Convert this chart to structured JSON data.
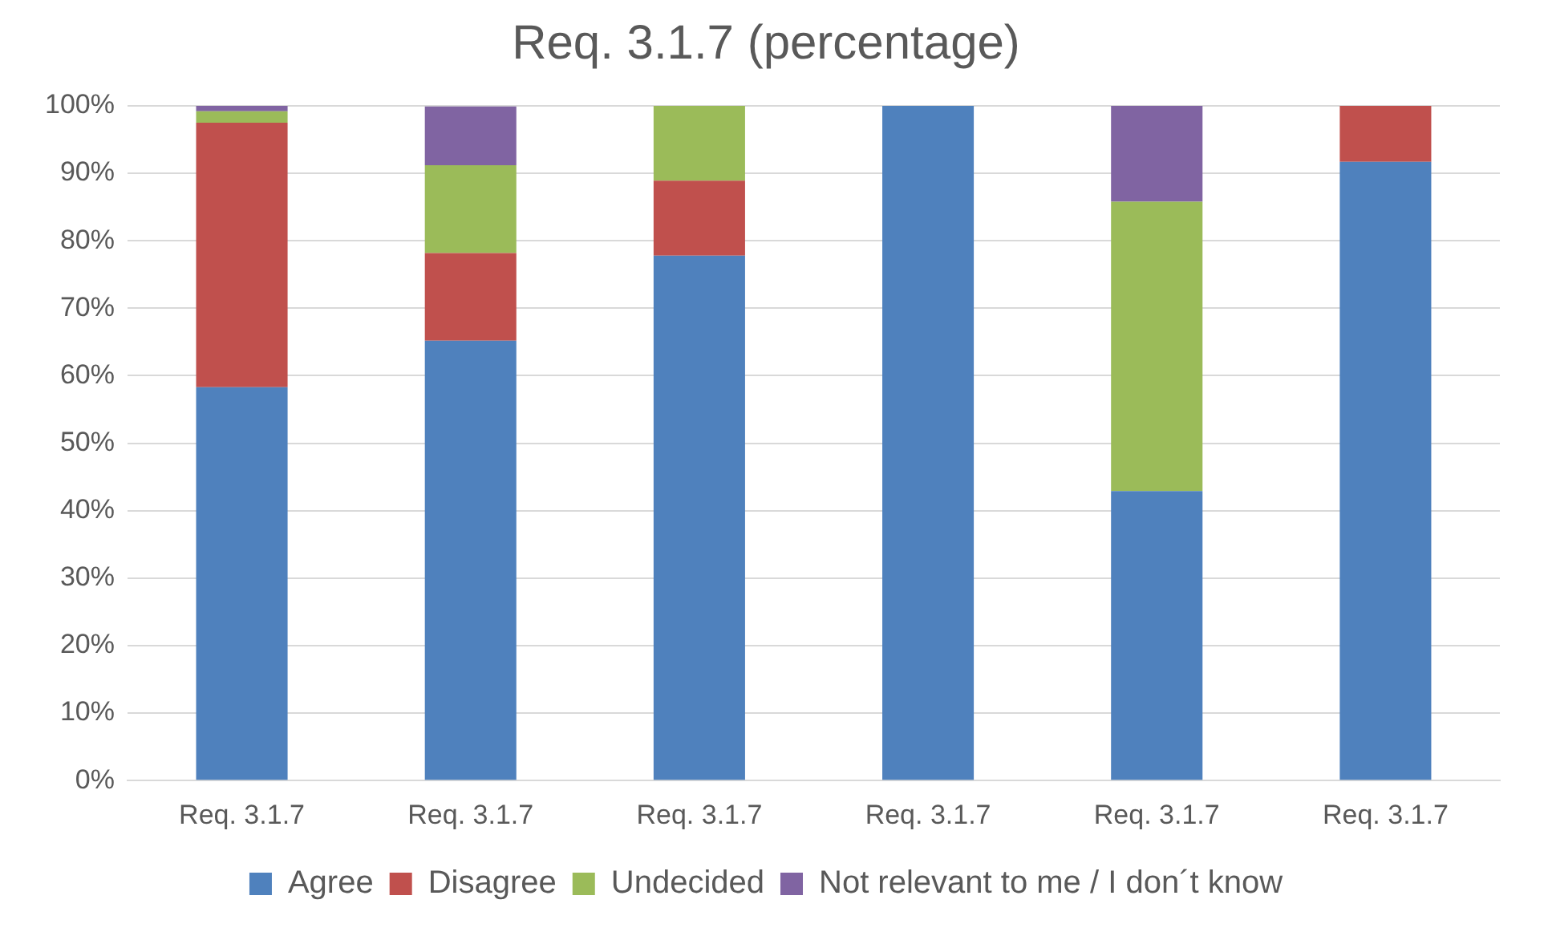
{
  "chart_data": {
    "type": "bar",
    "title": "Req. 3.1.7 (percentage)",
    "categories": [
      "Req. 3.1.7",
      "Req. 3.1.7",
      "Req. 3.1.7",
      "Req. 3.1.7",
      "Req. 3.1.7",
      "Req. 3.1.7"
    ],
    "stacked": true,
    "series": [
      {
        "name": "Agree",
        "color": "#4f81bd",
        "values": [
          58.3,
          65.2,
          77.8,
          100,
          42.9,
          91.7
        ]
      },
      {
        "name": "Disagree",
        "color": "#c0504d",
        "values": [
          39.2,
          13.0,
          11.1,
          0,
          0,
          8.3
        ]
      },
      {
        "name": "Undecided",
        "color": "#9bbb59",
        "values": [
          1.7,
          13.0,
          11.1,
          0,
          42.9,
          0
        ]
      },
      {
        "name": "Not relevant to me / I don´t know",
        "color": "#8064a2",
        "values": [
          0.8,
          8.7,
          0,
          0,
          14.3,
          0
        ]
      }
    ],
    "ylim": [
      0,
      100
    ],
    "yticks": [
      {
        "value": 0,
        "label": "0%"
      },
      {
        "value": 10,
        "label": "10%"
      },
      {
        "value": 20,
        "label": "20%"
      },
      {
        "value": 30,
        "label": "30%"
      },
      {
        "value": 40,
        "label": "40%"
      },
      {
        "value": 50,
        "label": "50%"
      },
      {
        "value": 60,
        "label": "60%"
      },
      {
        "value": 70,
        "label": "70%"
      },
      {
        "value": 80,
        "label": "80%"
      },
      {
        "value": 90,
        "label": "90%"
      },
      {
        "value": 100,
        "label": "100%"
      }
    ],
    "grid": "y",
    "legend": "bottom"
  }
}
